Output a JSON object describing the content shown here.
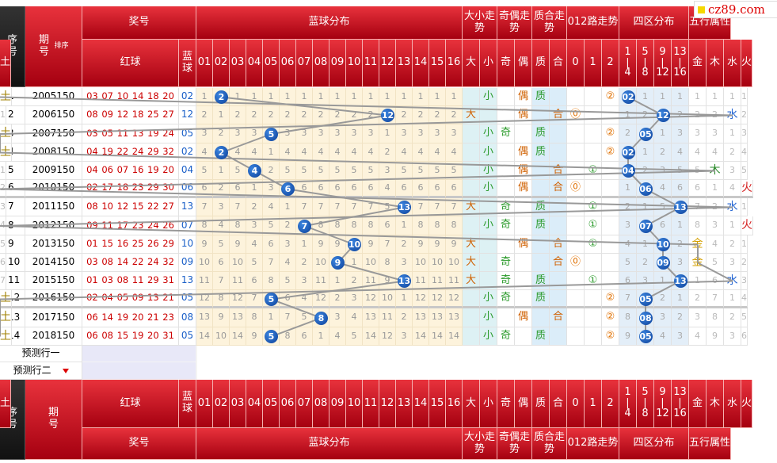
{
  "logo": "cz89.com",
  "header": {
    "seq": "序号",
    "issue": "期号",
    "sort": "排序",
    "prize": "奖号",
    "red": "红球",
    "blue": "蓝球",
    "dist": "蓝球分布",
    "size": "大小走势",
    "parity": "奇偶走势",
    "prime": "质合走势",
    "mod3": "012路走势",
    "zone": "四区分布",
    "element": "五行属性"
  },
  "columns": {
    "dist": [
      "01",
      "02",
      "03",
      "04",
      "05",
      "06",
      "07",
      "08",
      "09",
      "10",
      "11",
      "12",
      "13",
      "14",
      "15",
      "16"
    ],
    "size": [
      "大",
      "小"
    ],
    "parity": [
      "奇",
      "偶"
    ],
    "prime": [
      "质",
      "合"
    ],
    "mod3": [
      "0",
      "1",
      "2"
    ],
    "zone": [
      {
        "from": "1",
        "to": "4"
      },
      {
        "from": "5",
        "to": "8"
      },
      {
        "from": "9",
        "to": "12"
      },
      {
        "from": "13",
        "to": "16"
      }
    ],
    "element": [
      "金",
      "木",
      "水",
      "火",
      "土"
    ]
  },
  "rows": [
    {
      "seq": 1,
      "issue": "2005150",
      "red": [
        "03",
        "07",
        "10",
        "14",
        "18",
        "20"
      ],
      "blue": "02",
      "dist": [
        1,
        "2",
        1,
        1,
        1,
        1,
        1,
        1,
        1,
        1,
        1,
        1,
        1,
        1,
        1,
        1
      ],
      "size": [
        null,
        "小"
      ],
      "parity": [
        null,
        "偶"
      ],
      "prime": [
        "质",
        null
      ],
      "mod3": [
        null,
        null,
        "②"
      ],
      "zone": [
        "02",
        1,
        1,
        1
      ],
      "element": [
        1,
        1,
        1,
        1,
        "土"
      ]
    },
    {
      "seq": 2,
      "issue": "2006150",
      "red": [
        "08",
        "09",
        "12",
        "18",
        "25",
        "27"
      ],
      "blue": "12",
      "dist": [
        2,
        1,
        2,
        2,
        2,
        2,
        2,
        2,
        2,
        2,
        2,
        "12",
        2,
        2,
        2,
        2
      ],
      "size": [
        "大",
        null
      ],
      "parity": [
        null,
        "偶"
      ],
      "prime": [
        null,
        "合"
      ],
      "mod3": [
        "⓪",
        null,
        null
      ],
      "zone": [
        1,
        2,
        "12",
        2
      ],
      "element": [
        2,
        2,
        "水",
        2,
        1
      ]
    },
    {
      "seq": 3,
      "issue": "2007150",
      "red": [
        "03",
        "05",
        "11",
        "13",
        "19",
        "24"
      ],
      "blue": "05",
      "dist": [
        3,
        2,
        3,
        3,
        "5",
        3,
        3,
        3,
        3,
        3,
        3,
        1,
        3,
        3,
        3,
        3
      ],
      "size": [
        null,
        "小"
      ],
      "parity": [
        "奇",
        null
      ],
      "prime": [
        "质",
        null
      ],
      "mod3": [
        null,
        null,
        "②"
      ],
      "zone": [
        2,
        "05",
        1,
        3
      ],
      "element": [
        3,
        3,
        1,
        3,
        "土"
      ]
    },
    {
      "seq": 4,
      "issue": "2008150",
      "red": [
        "04",
        "19",
        "22",
        "24",
        "29",
        "32"
      ],
      "blue": "02",
      "dist": [
        4,
        "2",
        4,
        4,
        1,
        4,
        4,
        4,
        4,
        4,
        4,
        2,
        4,
        4,
        4,
        4
      ],
      "size": [
        null,
        "小"
      ],
      "parity": [
        null,
        "偶"
      ],
      "prime": [
        "质",
        null
      ],
      "mod3": [
        null,
        null,
        "②"
      ],
      "zone": [
        "02",
        1,
        2,
        4
      ],
      "element": [
        4,
        4,
        2,
        4,
        "土"
      ]
    },
    {
      "seq": 5,
      "issue": "2009150",
      "red": [
        "04",
        "06",
        "07",
        "16",
        "19",
        "20"
      ],
      "blue": "04",
      "dist": [
        5,
        1,
        5,
        "4",
        2,
        5,
        5,
        5,
        5,
        5,
        5,
        3,
        5,
        5,
        5,
        5
      ],
      "size": [
        null,
        "小"
      ],
      "parity": [
        null,
        "偶"
      ],
      "prime": [
        null,
        "合"
      ],
      "mod3": [
        null,
        "①",
        null
      ],
      "zone": [
        "04",
        2,
        3,
        5
      ],
      "element": [
        5,
        "木",
        3,
        5,
        1
      ]
    },
    {
      "seq": 6,
      "issue": "2010150",
      "red": [
        "02",
        "17",
        "18",
        "23",
        "29",
        "30"
      ],
      "blue": "06",
      "dist": [
        6,
        2,
        6,
        1,
        3,
        "6",
        6,
        6,
        6,
        6,
        6,
        4,
        6,
        6,
        6,
        6
      ],
      "size": [
        null,
        "小"
      ],
      "parity": [
        null,
        "偶"
      ],
      "prime": [
        null,
        "合"
      ],
      "mod3": [
        "⓪",
        null,
        null
      ],
      "zone": [
        1,
        "06",
        4,
        6
      ],
      "element": [
        6,
        1,
        4,
        "火",
        2
      ]
    },
    {
      "seq": 7,
      "issue": "2011150",
      "red": [
        "08",
        "10",
        "12",
        "15",
        "22",
        "27"
      ],
      "blue": "13",
      "dist": [
        7,
        3,
        7,
        2,
        4,
        1,
        7,
        7,
        7,
        7,
        7,
        5,
        "13",
        7,
        7,
        7
      ],
      "size": [
        "大",
        null
      ],
      "parity": [
        "奇",
        null
      ],
      "prime": [
        "质",
        null
      ],
      "mod3": [
        null,
        "①",
        null
      ],
      "zone": [
        2,
        1,
        5,
        "13"
      ],
      "element": [
        7,
        2,
        "水",
        1,
        3
      ]
    },
    {
      "seq": 8,
      "issue": "2012150",
      "red": [
        "09",
        "11",
        "17",
        "23",
        "24",
        "26"
      ],
      "blue": "07",
      "dist": [
        8,
        4,
        8,
        3,
        5,
        2,
        "7",
        8,
        8,
        8,
        8,
        6,
        1,
        8,
        8,
        8
      ],
      "size": [
        null,
        "小"
      ],
      "parity": [
        "奇",
        null
      ],
      "prime": [
        "质",
        null
      ],
      "mod3": [
        null,
        "①",
        null
      ],
      "zone": [
        3,
        "07",
        6,
        1
      ],
      "element": [
        8,
        3,
        1,
        "火",
        4
      ]
    },
    {
      "seq": 9,
      "issue": "2013150",
      "red": [
        "01",
        "15",
        "16",
        "25",
        "26",
        "29"
      ],
      "blue": "10",
      "dist": [
        9,
        5,
        9,
        4,
        6,
        3,
        1,
        9,
        9,
        "10",
        9,
        7,
        2,
        9,
        9,
        9
      ],
      "size": [
        "大",
        null
      ],
      "parity": [
        null,
        "偶"
      ],
      "prime": [
        null,
        "合"
      ],
      "mod3": [
        null,
        "①",
        null
      ],
      "zone": [
        4,
        1,
        "10",
        2
      ],
      "element": [
        "金",
        4,
        2,
        1,
        5
      ]
    },
    {
      "seq": 10,
      "issue": "2014150",
      "red": [
        "03",
        "08",
        "14",
        "22",
        "24",
        "32"
      ],
      "blue": "09",
      "dist": [
        10,
        6,
        10,
        5,
        7,
        4,
        2,
        10,
        "9",
        1,
        10,
        8,
        3,
        10,
        10,
        10
      ],
      "size": [
        "大",
        null
      ],
      "parity": [
        "奇",
        null
      ],
      "prime": [
        null,
        "合"
      ],
      "mod3": [
        "⓪",
        null,
        null
      ],
      "zone": [
        5,
        2,
        "09",
        3
      ],
      "element": [
        "金",
        5,
        3,
        2,
        6
      ]
    },
    {
      "seq": 11,
      "issue": "2015150",
      "red": [
        "01",
        "03",
        "08",
        "11",
        "29",
        "31"
      ],
      "blue": "13",
      "dist": [
        11,
        7,
        11,
        6,
        8,
        5,
        3,
        11,
        1,
        2,
        11,
        9,
        "13",
        11,
        11,
        11
      ],
      "size": [
        "大",
        null
      ],
      "parity": [
        "奇",
        null
      ],
      "prime": [
        "质",
        null
      ],
      "mod3": [
        null,
        "①",
        null
      ],
      "zone": [
        6,
        3,
        1,
        "13"
      ],
      "element": [
        1,
        6,
        "水",
        3,
        7
      ]
    },
    {
      "seq": 12,
      "issue": "2016150",
      "red": [
        "02",
        "04",
        "05",
        "09",
        "13",
        "21"
      ],
      "blue": "05",
      "dist": [
        12,
        8,
        12,
        7,
        "5",
        6,
        4,
        12,
        2,
        3,
        12,
        10,
        1,
        12,
        12,
        12
      ],
      "size": [
        null,
        "小"
      ],
      "parity": [
        "奇",
        null
      ],
      "prime": [
        "质",
        null
      ],
      "mod3": [
        null,
        null,
        "②"
      ],
      "zone": [
        7,
        "05",
        2,
        1
      ],
      "element": [
        2,
        7,
        1,
        4,
        "土"
      ]
    },
    {
      "seq": 13,
      "issue": "2017150",
      "red": [
        "06",
        "14",
        "19",
        "20",
        "21",
        "23"
      ],
      "blue": "08",
      "dist": [
        13,
        9,
        13,
        8,
        1,
        7,
        5,
        "8",
        3,
        4,
        13,
        11,
        2,
        13,
        13,
        13
      ],
      "size": [
        null,
        "小"
      ],
      "parity": [
        null,
        "偶"
      ],
      "prime": [
        null,
        "合"
      ],
      "mod3": [
        null,
        null,
        "②"
      ],
      "zone": [
        8,
        "08",
        3,
        2
      ],
      "element": [
        3,
        8,
        2,
        5,
        "土"
      ]
    },
    {
      "seq": 14,
      "issue": "2018150",
      "red": [
        "06",
        "08",
        "15",
        "19",
        "20",
        "31"
      ],
      "blue": "05",
      "dist": [
        14,
        10,
        14,
        9,
        "5",
        8,
        6,
        1,
        4,
        5,
        14,
        12,
        3,
        14,
        14,
        14
      ],
      "size": [
        null,
        "小"
      ],
      "parity": [
        "奇",
        null
      ],
      "prime": [
        "质",
        null
      ],
      "mod3": [
        null,
        null,
        "②"
      ],
      "zone": [
        9,
        "05",
        4,
        3
      ],
      "element": [
        4,
        9,
        3,
        6,
        "土"
      ]
    }
  ],
  "predict": [
    "预测行一",
    "预测行二"
  ]
}
